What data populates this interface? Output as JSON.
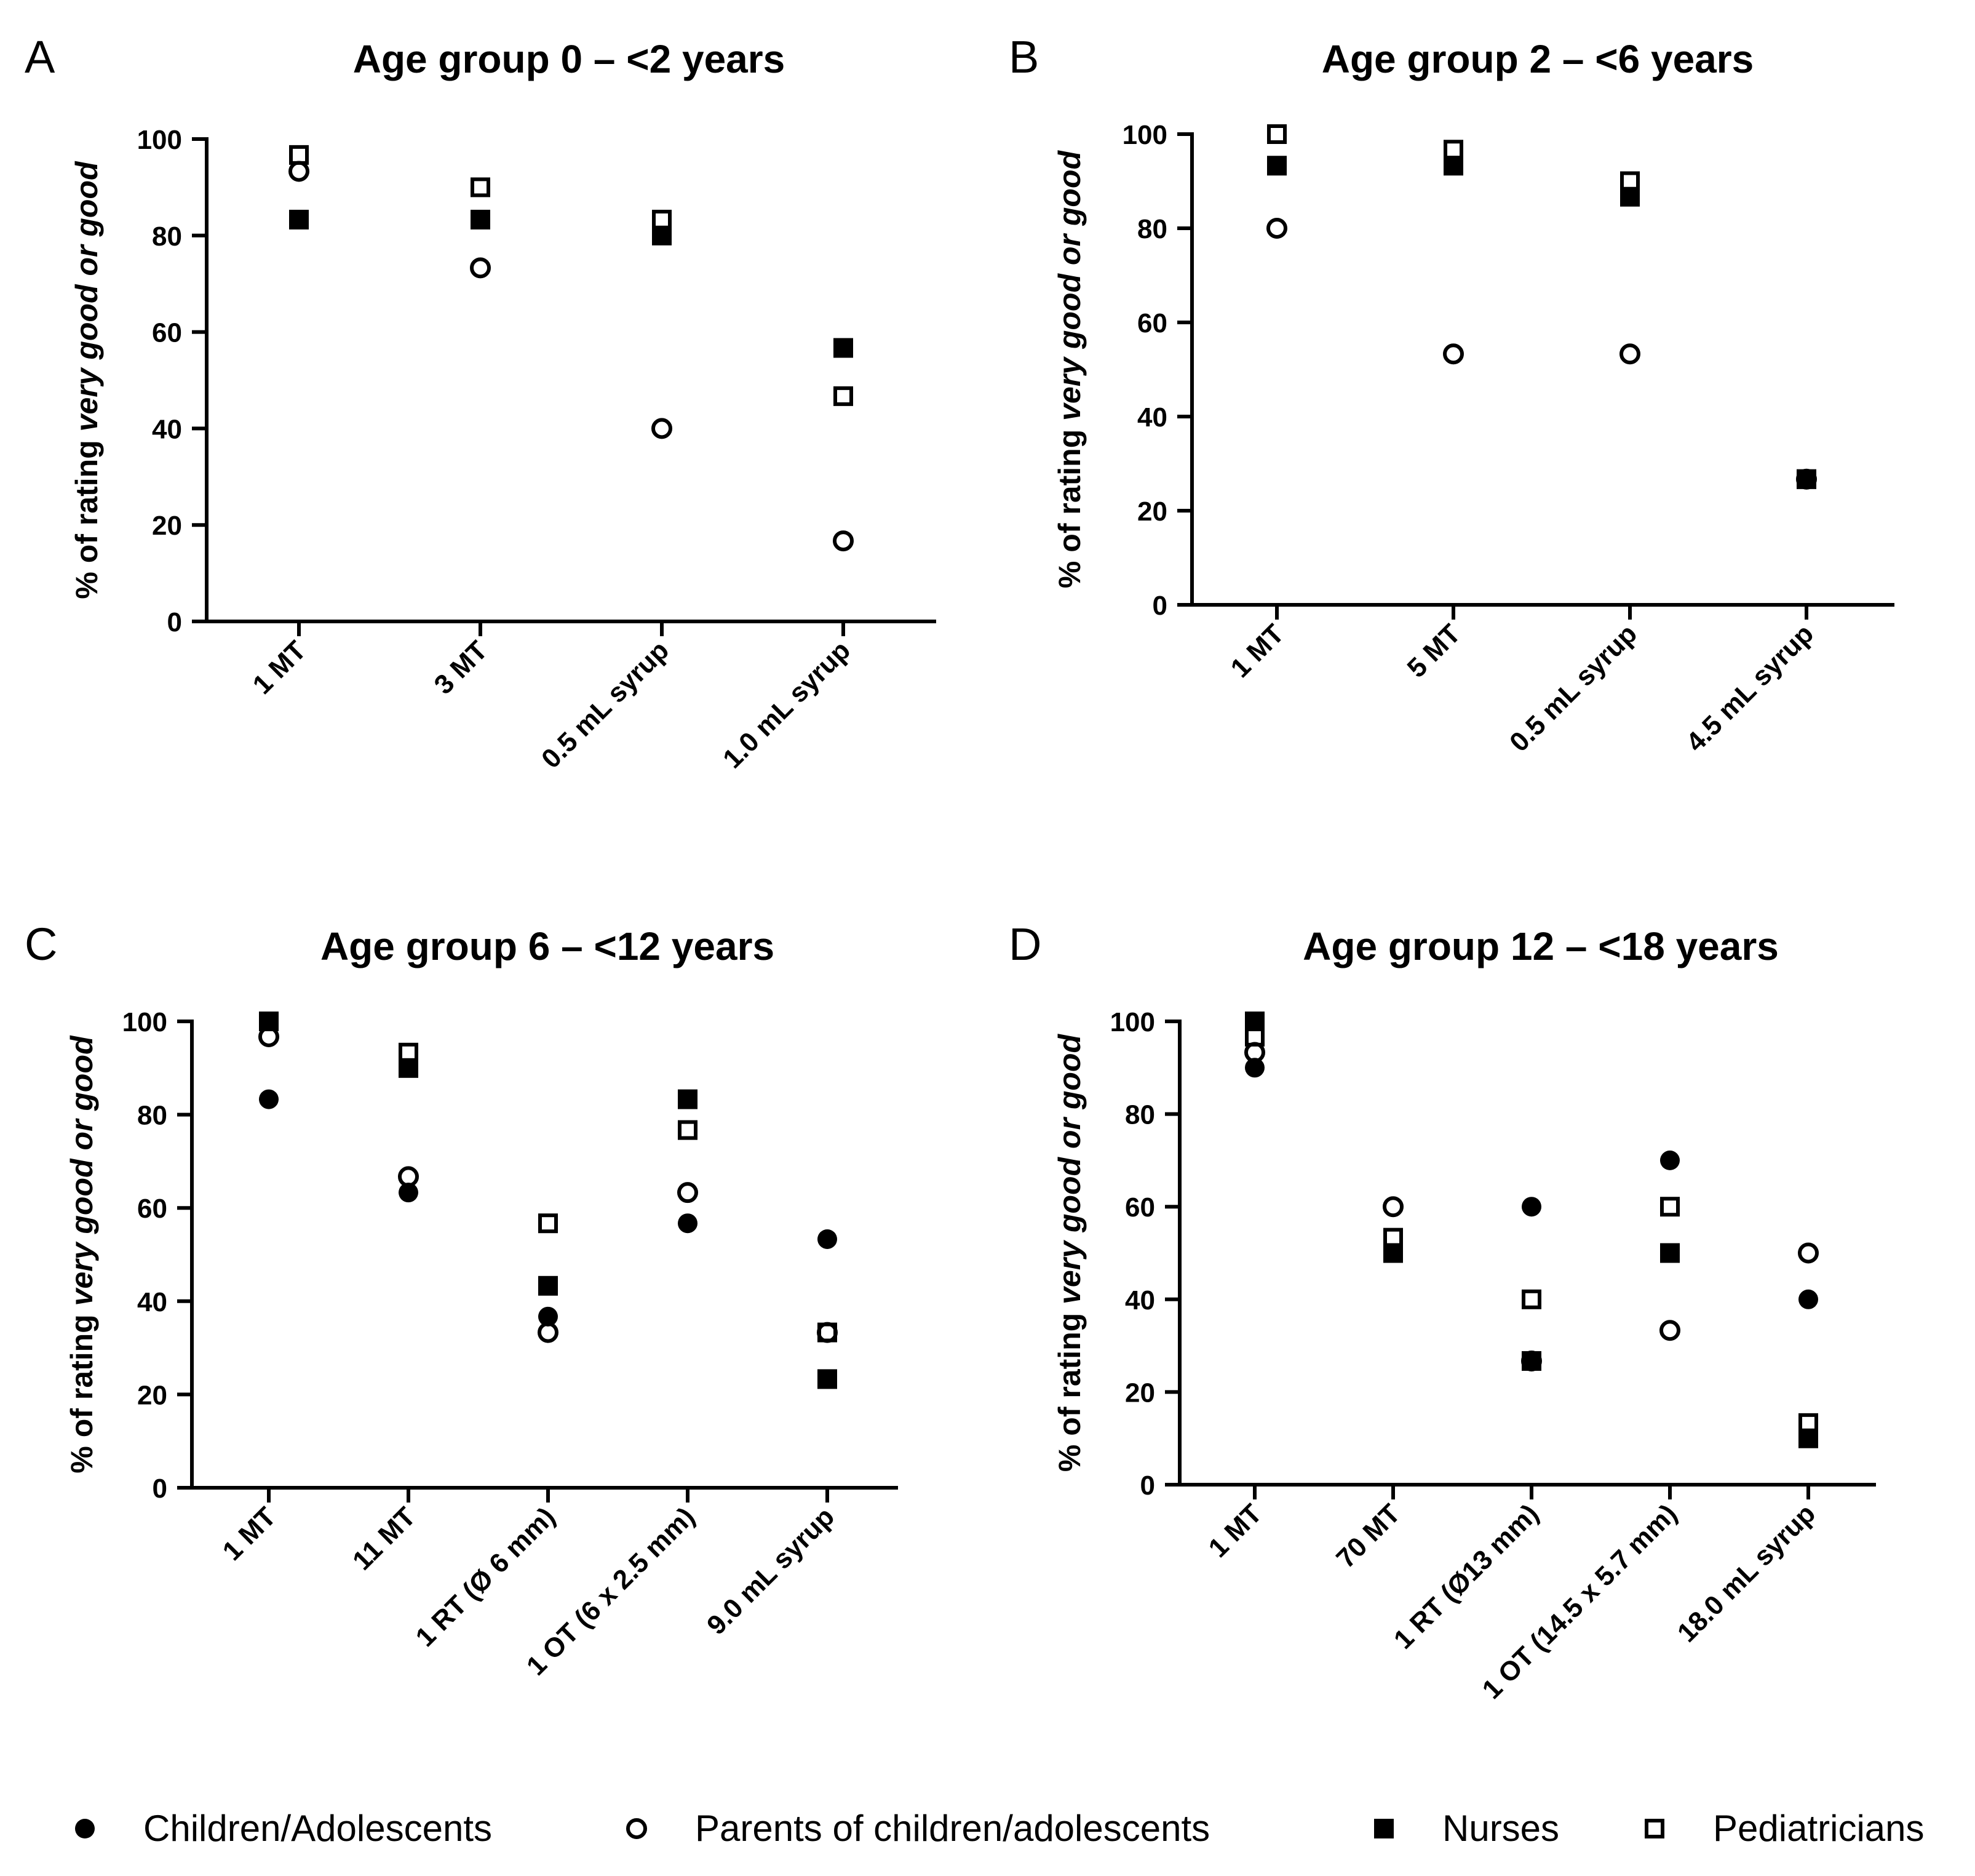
{
  "series_names": [
    "Children/Adolescents",
    "Parents of children/adolescents",
    "Nurses",
    "Pediatricians"
  ],
  "legend": [
    {
      "label": "Children/Adolescents",
      "marker": "filled-circle"
    },
    {
      "label": "Parents of children/adolescents",
      "marker": "open-circle"
    },
    {
      "label": "Nurses",
      "marker": "filled-square"
    },
    {
      "label": "Pediatricians",
      "marker": "open-square"
    }
  ],
  "chart_data": [
    {
      "type": "scatter",
      "panel": "A",
      "title": "Age group 0 – <2 years",
      "ylabel_prefix": "% of rating ",
      "ylabel_italic": "very good or good",
      "ylim": [
        0,
        100
      ],
      "yticks": [
        0,
        20,
        40,
        60,
        80,
        100
      ],
      "categories": [
        "1 MT",
        "3 MT",
        "0.5 mL syrup",
        "1.0 mL syrup"
      ],
      "series": [
        {
          "name": "Children/Adolescents",
          "marker": "filled-circle",
          "values": [
            null,
            null,
            null,
            null
          ]
        },
        {
          "name": "Parents of children/adolescents",
          "marker": "open-circle",
          "values": [
            93.3,
            73.3,
            40,
            16.7
          ]
        },
        {
          "name": "Nurses",
          "marker": "filled-square",
          "values": [
            83.3,
            83.3,
            80,
            56.7
          ]
        },
        {
          "name": "Pediatricians",
          "marker": "open-square",
          "values": [
            96.7,
            90,
            83.3,
            46.7
          ]
        }
      ]
    },
    {
      "type": "scatter",
      "panel": "B",
      "title": "Age group 2 – <6 years",
      "ylabel_prefix": "% of rating ",
      "ylabel_italic": "very good or good",
      "ylim": [
        0,
        100
      ],
      "yticks": [
        0,
        20,
        40,
        60,
        80,
        100
      ],
      "categories": [
        "1 MT",
        "5 MT",
        "0.5 mL syrup",
        "4.5 mL syrup"
      ],
      "series": [
        {
          "name": "Children/Adolescents",
          "marker": "filled-circle",
          "values": [
            null,
            null,
            null,
            null
          ]
        },
        {
          "name": "Parents of children/adolescents",
          "marker": "open-circle",
          "values": [
            80,
            53.3,
            53.3,
            26.7
          ]
        },
        {
          "name": "Nurses",
          "marker": "filled-square",
          "values": [
            93.3,
            93.3,
            86.7,
            26.7
          ]
        },
        {
          "name": "Pediatricians",
          "marker": "open-square",
          "values": [
            100,
            96.7,
            90,
            26.7
          ]
        }
      ]
    },
    {
      "type": "scatter",
      "panel": "C",
      "title": "Age group 6 – <12 years",
      "ylabel_prefix": "% of rating ",
      "ylabel_italic": "very good or good",
      "ylim": [
        0,
        100
      ],
      "yticks": [
        0,
        20,
        40,
        60,
        80,
        100
      ],
      "categories": [
        "1 MT",
        "11 MT",
        "1 RT (Ø 6 mm)",
        "1 OT (6 x 2.5 mm)",
        "9.0 mL syrup"
      ],
      "series": [
        {
          "name": "Children/Adolescents",
          "marker": "filled-circle",
          "values": [
            83.3,
            63.3,
            36.7,
            56.7,
            53.3
          ]
        },
        {
          "name": "Parents of children/adolescents",
          "marker": "open-circle",
          "values": [
            96.7,
            66.7,
            33.3,
            63.3,
            33.3
          ]
        },
        {
          "name": "Nurses",
          "marker": "filled-square",
          "values": [
            100,
            90,
            43.3,
            83.3,
            23.3
          ]
        },
        {
          "name": "Pediatricians",
          "marker": "open-square",
          "values": [
            100,
            93.3,
            56.7,
            76.7,
            33.3
          ]
        }
      ]
    },
    {
      "type": "scatter",
      "panel": "D",
      "title": "Age group 12 – <18 years",
      "ylabel_prefix": "% of rating ",
      "ylabel_italic": "very good or good",
      "ylim": [
        0,
        100
      ],
      "yticks": [
        0,
        20,
        40,
        60,
        80,
        100
      ],
      "categories": [
        "1 MT",
        "70 MT",
        "1 RT (Ø13 mm)",
        "1 OT (14.5 x 5.7 mm)",
        "18.0 mL syrup"
      ],
      "series": [
        {
          "name": "Children/Adolescents",
          "marker": "filled-circle",
          "values": [
            90,
            50,
            60,
            70,
            40
          ]
        },
        {
          "name": "Parents of children/adolescents",
          "marker": "open-circle",
          "values": [
            93.3,
            60,
            26.7,
            33.3,
            50
          ]
        },
        {
          "name": "Nurses",
          "marker": "filled-square",
          "values": [
            100,
            50,
            26.7,
            50,
            10
          ]
        },
        {
          "name": "Pediatricians",
          "marker": "open-square",
          "values": [
            96.7,
            53.3,
            40,
            60,
            13.3
          ]
        }
      ]
    }
  ]
}
